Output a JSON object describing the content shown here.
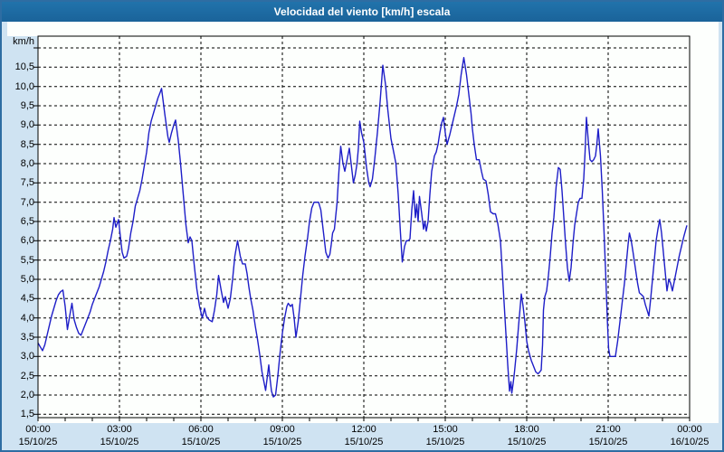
{
  "window": {
    "title": "Velocidad del viento [km/h] escala"
  },
  "chart_data": {
    "type": "line",
    "title": "Velocidad del viento [km/h] escala",
    "unit_label": "km/h",
    "xlabel": "",
    "ylabel": "km/h",
    "ylim": [
      1.5,
      11.0
    ],
    "y_step": 0.5,
    "xlim_hours": [
      0,
      24
    ],
    "x_major_step_hours": 3,
    "grid": "dashed",
    "legend": "none",
    "line_color": "#1e1ec8",
    "background_color": "#cfe3f2",
    "plot_background": "#fdfffd",
    "titlebar_color": "#1d6ba1",
    "y_tick_labels": [
      "1,5",
      "2,0",
      "2,5",
      "3,0",
      "3,5",
      "4,0",
      "4,5",
      "5,0",
      "5,5",
      "6,0",
      "6,5",
      "7,0",
      "7,5",
      "8,0",
      "8,5",
      "9,0",
      "9,5",
      "10,0",
      "10,5"
    ],
    "x_ticks": [
      {
        "time": "00:00",
        "date": "15/10/25"
      },
      {
        "time": "03:00",
        "date": "15/10/25"
      },
      {
        "time": "06:00",
        "date": "15/10/25"
      },
      {
        "time": "09:00",
        "date": "15/10/25"
      },
      {
        "time": "12:00",
        "date": "15/10/25"
      },
      {
        "time": "15:00",
        "date": "15/10/25"
      },
      {
        "time": "18:00",
        "date": "15/10/25"
      },
      {
        "time": "21:00",
        "date": "15/10/25"
      },
      {
        "time": "00:00",
        "date": "16/10/25"
      }
    ],
    "points_format": "[minute_of_day, wind_speed_kmh]",
    "points": [
      [
        0,
        3.35
      ],
      [
        5,
        3.25
      ],
      [
        10,
        3.15
      ],
      [
        15,
        3.3
      ],
      [
        20,
        3.55
      ],
      [
        25,
        3.8
      ],
      [
        30,
        4.05
      ],
      [
        35,
        4.25
      ],
      [
        40,
        4.45
      ],
      [
        45,
        4.6
      ],
      [
        50,
        4.68
      ],
      [
        55,
        4.72
      ],
      [
        60,
        4.3
      ],
      [
        65,
        3.7
      ],
      [
        70,
        4.05
      ],
      [
        75,
        4.38
      ],
      [
        80,
        3.95
      ],
      [
        85,
        3.75
      ],
      [
        90,
        3.6
      ],
      [
        95,
        3.55
      ],
      [
        100,
        3.7
      ],
      [
        105,
        3.85
      ],
      [
        110,
        4.0
      ],
      [
        115,
        4.15
      ],
      [
        120,
        4.35
      ],
      [
        125,
        4.5
      ],
      [
        130,
        4.65
      ],
      [
        135,
        4.8
      ],
      [
        140,
        5.0
      ],
      [
        145,
        5.2
      ],
      [
        150,
        5.45
      ],
      [
        155,
        5.75
      ],
      [
        160,
        6.0
      ],
      [
        165,
        6.3
      ],
      [
        168,
        6.6
      ],
      [
        172,
        6.35
      ],
      [
        178,
        6.55
      ],
      [
        183,
        6.0
      ],
      [
        186,
        5.7
      ],
      [
        190,
        5.55
      ],
      [
        196,
        5.6
      ],
      [
        200,
        5.8
      ],
      [
        205,
        6.2
      ],
      [
        210,
        6.5
      ],
      [
        215,
        6.9
      ],
      [
        220,
        7.1
      ],
      [
        225,
        7.3
      ],
      [
        230,
        7.6
      ],
      [
        235,
        7.95
      ],
      [
        240,
        8.3
      ],
      [
        245,
        8.8
      ],
      [
        250,
        9.1
      ],
      [
        255,
        9.3
      ],
      [
        260,
        9.5
      ],
      [
        265,
        9.7
      ],
      [
        270,
        9.85
      ],
      [
        273,
        9.95
      ],
      [
        280,
        9.3
      ],
      [
        287,
        8.7
      ],
      [
        290,
        8.55
      ],
      [
        295,
        8.8
      ],
      [
        300,
        9.0
      ],
      [
        304,
        9.13
      ],
      [
        310,
        8.6
      ],
      [
        315,
        8.0
      ],
      [
        321,
        7.2
      ],
      [
        327,
        6.4
      ],
      [
        332,
        5.95
      ],
      [
        336,
        6.1
      ],
      [
        340,
        6.0
      ],
      [
        345,
        5.4
      ],
      [
        351,
        4.75
      ],
      [
        357,
        4.3
      ],
      [
        363,
        4.0
      ],
      [
        368,
        4.25
      ],
      [
        372,
        4.05
      ],
      [
        378,
        3.95
      ],
      [
        385,
        3.9
      ],
      [
        390,
        4.2
      ],
      [
        395,
        4.6
      ],
      [
        399,
        5.1
      ],
      [
        405,
        4.7
      ],
      [
        410,
        4.4
      ],
      [
        414,
        4.55
      ],
      [
        420,
        4.25
      ],
      [
        425,
        4.5
      ],
      [
        430,
        5.0
      ],
      [
        435,
        5.6
      ],
      [
        441,
        6.0
      ],
      [
        447,
        5.6
      ],
      [
        452,
        5.4
      ],
      [
        458,
        5.4
      ],
      [
        462,
        5.15
      ],
      [
        466,
        4.8
      ],
      [
        470,
        4.5
      ],
      [
        475,
        4.2
      ],
      [
        480,
        3.8
      ],
      [
        485,
        3.45
      ],
      [
        490,
        3.05
      ],
      [
        495,
        2.6
      ],
      [
        500,
        2.3
      ],
      [
        503,
        2.12
      ],
      [
        507,
        2.5
      ],
      [
        510,
        2.78
      ],
      [
        513,
        2.4
      ],
      [
        516,
        2.1
      ],
      [
        520,
        1.95
      ],
      [
        525,
        2.0
      ],
      [
        530,
        2.5
      ],
      [
        535,
        3.1
      ],
      [
        540,
        3.6
      ],
      [
        545,
        4.0
      ],
      [
        550,
        4.3
      ],
      [
        553,
        4.38
      ],
      [
        558,
        4.3
      ],
      [
        562,
        4.35
      ],
      [
        566,
        4.0
      ],
      [
        570,
        3.5
      ],
      [
        575,
        3.9
      ],
      [
        580,
        4.5
      ],
      [
        585,
        5.1
      ],
      [
        590,
        5.6
      ],
      [
        596,
        6.1
      ],
      [
        600,
        6.5
      ],
      [
        605,
        6.85
      ],
      [
        610,
        7.0
      ],
      [
        615,
        7.0
      ],
      [
        620,
        7.0
      ],
      [
        625,
        6.8
      ],
      [
        630,
        6.3
      ],
      [
        636,
        5.7
      ],
      [
        641,
        5.55
      ],
      [
        645,
        5.65
      ],
      [
        648,
        5.9
      ],
      [
        651,
        6.2
      ],
      [
        655,
        6.3
      ],
      [
        661,
        7.0
      ],
      [
        665,
        7.8
      ],
      [
        669,
        8.45
      ],
      [
        674,
        8.0
      ],
      [
        678,
        7.8
      ],
      [
        683,
        8.1
      ],
      [
        688,
        8.4
      ],
      [
        693,
        7.9
      ],
      [
        697,
        7.5
      ],
      [
        701,
        7.7
      ],
      [
        705,
        8.0
      ],
      [
        708,
        8.4
      ],
      [
        711,
        9.1
      ],
      [
        715,
        8.8
      ],
      [
        720,
        8.55
      ],
      [
        726,
        7.9
      ],
      [
        731,
        7.5
      ],
      [
        734,
        7.4
      ],
      [
        739,
        7.6
      ],
      [
        744,
        8.1
      ],
      [
        750,
        8.8
      ],
      [
        756,
        9.6
      ],
      [
        762,
        10.55
      ],
      [
        768,
        10.05
      ],
      [
        773,
        9.4
      ],
      [
        780,
        8.65
      ],
      [
        786,
        8.3
      ],
      [
        791,
        8.0
      ],
      [
        796,
        7.2
      ],
      [
        801,
        6.2
      ],
      [
        805,
        5.45
      ],
      [
        810,
        5.85
      ],
      [
        814,
        6.0
      ],
      [
        818,
        6.0
      ],
      [
        822,
        6.05
      ],
      [
        826,
        6.8
      ],
      [
        830,
        7.3
      ],
      [
        834,
        6.6
      ],
      [
        837,
        6.95
      ],
      [
        840,
        6.5
      ],
      [
        843,
        7.15
      ],
      [
        848,
        6.7
      ],
      [
        852,
        6.3
      ],
      [
        855,
        6.5
      ],
      [
        858,
        6.25
      ],
      [
        862,
        6.5
      ],
      [
        866,
        7.2
      ],
      [
        870,
        7.8
      ],
      [
        876,
        8.2
      ],
      [
        880,
        8.3
      ],
      [
        884,
        8.5
      ],
      [
        888,
        8.8
      ],
      [
        892,
        9.05
      ],
      [
        896,
        9.2
      ],
      [
        900,
        8.8
      ],
      [
        904,
        8.5
      ],
      [
        910,
        8.75
      ],
      [
        915,
        9.0
      ],
      [
        920,
        9.25
      ],
      [
        925,
        9.5
      ],
      [
        930,
        9.8
      ],
      [
        935,
        10.3
      ],
      [
        941,
        10.75
      ],
      [
        947,
        10.3
      ],
      [
        952,
        9.8
      ],
      [
        957,
        9.3
      ],
      [
        960,
        8.9
      ],
      [
        964,
        8.5
      ],
      [
        969,
        8.1
      ],
      [
        975,
        8.1
      ],
      [
        980,
        7.8
      ],
      [
        984,
        7.6
      ],
      [
        990,
        7.55
      ],
      [
        995,
        7.2
      ],
      [
        1000,
        6.75
      ],
      [
        1006,
        6.7
      ],
      [
        1011,
        6.7
      ],
      [
        1016,
        6.45
      ],
      [
        1022,
        6.0
      ],
      [
        1026,
        5.2
      ],
      [
        1030,
        4.4
      ],
      [
        1034,
        3.6
      ],
      [
        1038,
        2.8
      ],
      [
        1042,
        2.1
      ],
      [
        1045,
        2.35
      ],
      [
        1047,
        2.05
      ],
      [
        1050,
        2.3
      ],
      [
        1053,
        2.6
      ],
      [
        1058,
        3.2
      ],
      [
        1062,
        3.8
      ],
      [
        1065,
        4.2
      ],
      [
        1068,
        4.62
      ],
      [
        1072,
        4.3
      ],
      [
        1076,
        3.9
      ],
      [
        1080,
        3.4
      ],
      [
        1084,
        3.15
      ],
      [
        1090,
        2.9
      ],
      [
        1095,
        2.75
      ],
      [
        1100,
        2.6
      ],
      [
        1105,
        2.55
      ],
      [
        1109,
        2.6
      ],
      [
        1112,
        2.65
      ],
      [
        1115,
        3.3
      ],
      [
        1117,
        4.2
      ],
      [
        1120,
        4.55
      ],
      [
        1124,
        4.7
      ],
      [
        1128,
        5.1
      ],
      [
        1132,
        5.6
      ],
      [
        1136,
        6.2
      ],
      [
        1140,
        6.6
      ],
      [
        1145,
        7.4
      ],
      [
        1150,
        7.9
      ],
      [
        1154,
        7.85
      ],
      [
        1158,
        7.3
      ],
      [
        1162,
        6.6
      ],
      [
        1166,
        5.9
      ],
      [
        1170,
        5.3
      ],
      [
        1174,
        4.95
      ],
      [
        1178,
        5.3
      ],
      [
        1182,
        5.9
      ],
      [
        1186,
        6.4
      ],
      [
        1190,
        6.7
      ],
      [
        1194,
        7.0
      ],
      [
        1198,
        7.1
      ],
      [
        1202,
        7.1
      ],
      [
        1206,
        7.6
      ],
      [
        1209,
        8.3
      ],
      [
        1212,
        9.2
      ],
      [
        1216,
        8.6
      ],
      [
        1220,
        8.1
      ],
      [
        1224,
        8.05
      ],
      [
        1228,
        8.1
      ],
      [
        1232,
        8.2
      ],
      [
        1235,
        8.5
      ],
      [
        1238,
        8.9
      ],
      [
        1243,
        8.2
      ],
      [
        1247,
        7.3
      ],
      [
        1251,
        6.2
      ],
      [
        1255,
        5.0
      ],
      [
        1258,
        4.0
      ],
      [
        1261,
        3.2
      ],
      [
        1264,
        3.0
      ],
      [
        1270,
        3.0
      ],
      [
        1276,
        3.0
      ],
      [
        1281,
        3.4
      ],
      [
        1286,
        3.9
      ],
      [
        1291,
        4.4
      ],
      [
        1296,
        4.9
      ],
      [
        1300,
        5.4
      ],
      [
        1304,
        5.9
      ],
      [
        1307,
        6.2
      ],
      [
        1311,
        6.0
      ],
      [
        1315,
        5.7
      ],
      [
        1320,
        5.3
      ],
      [
        1325,
        4.9
      ],
      [
        1329,
        4.65
      ],
      [
        1334,
        4.6
      ],
      [
        1338,
        4.55
      ],
      [
        1342,
        4.35
      ],
      [
        1346,
        4.2
      ],
      [
        1350,
        4.05
      ],
      [
        1354,
        4.5
      ],
      [
        1358,
        5.0
      ],
      [
        1362,
        5.5
      ],
      [
        1366,
        6.0
      ],
      [
        1370,
        6.3
      ],
      [
        1374,
        6.55
      ],
      [
        1378,
        6.2
      ],
      [
        1382,
        5.7
      ],
      [
        1386,
        5.2
      ],
      [
        1390,
        4.7
      ],
      [
        1394,
        5.0
      ],
      [
        1398,
        4.9
      ],
      [
        1402,
        4.7
      ],
      [
        1407,
        5.0
      ],
      [
        1412,
        5.3
      ],
      [
        1417,
        5.6
      ],
      [
        1422,
        5.85
      ],
      [
        1427,
        6.1
      ],
      [
        1434,
        6.4
      ]
    ]
  }
}
